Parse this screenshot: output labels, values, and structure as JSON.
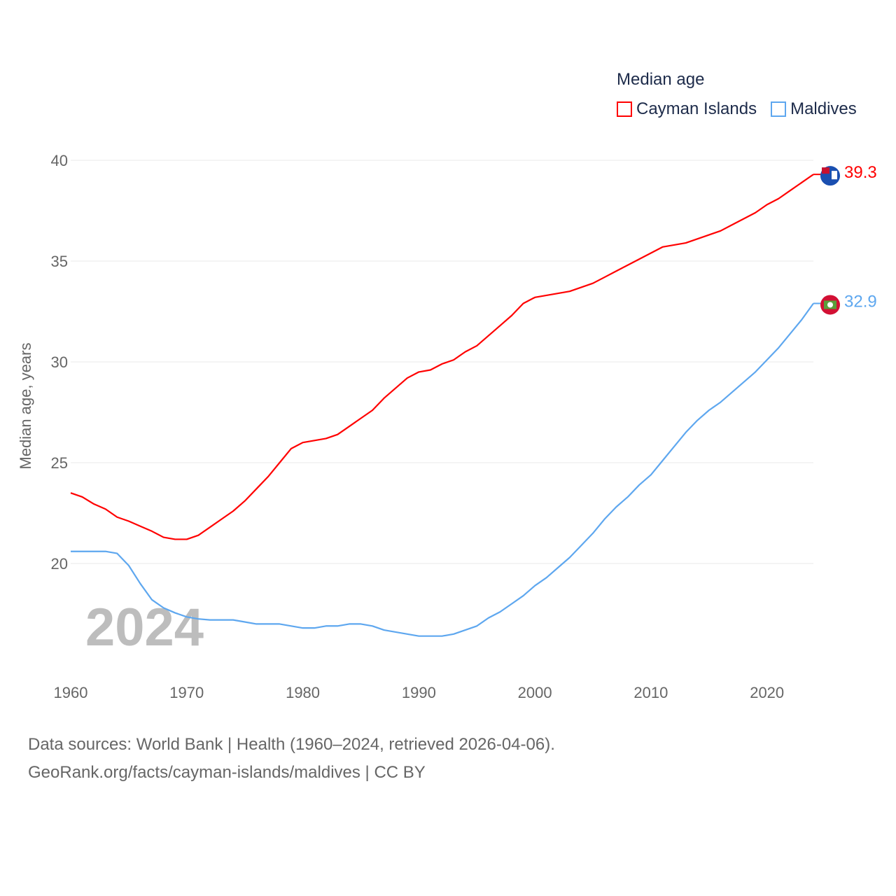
{
  "chart_data": {
    "type": "line",
    "title": "Median age",
    "ylabel": "Median age, years",
    "xlabel": "",
    "ylim": [
      15,
      40
    ],
    "xlim": [
      1960,
      2024
    ],
    "yticks": [
      20,
      25,
      30,
      35,
      40
    ],
    "xticks": [
      1960,
      1970,
      1980,
      1990,
      2000,
      2010,
      2020
    ],
    "grid": true,
    "legend_position": "top-right",
    "year_label": "2024",
    "x": [
      1960,
      1961,
      1962,
      1963,
      1964,
      1965,
      1966,
      1967,
      1968,
      1969,
      1970,
      1971,
      1972,
      1973,
      1974,
      1975,
      1976,
      1977,
      1978,
      1979,
      1980,
      1981,
      1982,
      1983,
      1984,
      1985,
      1986,
      1987,
      1988,
      1989,
      1990,
      1991,
      1992,
      1993,
      1994,
      1995,
      1996,
      1997,
      1998,
      1999,
      2000,
      2001,
      2002,
      2003,
      2004,
      2005,
      2006,
      2007,
      2008,
      2009,
      2010,
      2011,
      2012,
      2013,
      2014,
      2015,
      2016,
      2017,
      2018,
      2019,
      2020,
      2021,
      2022,
      2023,
      2024
    ],
    "series": [
      {
        "name": "Cayman Islands",
        "color": "#ff0000",
        "end_label": "39.3",
        "values": [
          23.5,
          23.3,
          22.95,
          22.7,
          22.3,
          22.1,
          21.85,
          21.6,
          21.3,
          21.2,
          21.2,
          21.4,
          21.8,
          22.2,
          22.6,
          23.1,
          23.7,
          24.3,
          25.0,
          25.7,
          26.0,
          26.1,
          26.2,
          26.4,
          26.8,
          27.2,
          27.6,
          28.2,
          28.7,
          29.2,
          29.5,
          29.6,
          29.9,
          30.1,
          30.5,
          30.8,
          31.3,
          31.8,
          32.3,
          32.9,
          33.2,
          33.3,
          33.4,
          33.5,
          33.7,
          33.9,
          34.2,
          34.5,
          34.8,
          35.1,
          35.4,
          35.7,
          35.8,
          35.9,
          36.1,
          36.3,
          36.5,
          36.8,
          37.1,
          37.4,
          37.8,
          38.1,
          38.5,
          38.9,
          39.3
        ]
      },
      {
        "name": "Maldives",
        "color": "#5ea7ef",
        "end_label": "32.9",
        "values": [
          20.6,
          20.6,
          20.6,
          20.6,
          20.5,
          19.9,
          19.0,
          18.2,
          17.8,
          17.55,
          17.35,
          17.25,
          17.2,
          17.2,
          17.2,
          17.1,
          17.0,
          17.0,
          17.0,
          16.9,
          16.8,
          16.8,
          16.9,
          16.9,
          17.0,
          17.0,
          16.9,
          16.7,
          16.6,
          16.5,
          16.4,
          16.4,
          16.4,
          16.5,
          16.7,
          16.9,
          17.3,
          17.6,
          18.0,
          18.4,
          18.9,
          19.3,
          19.8,
          20.3,
          20.9,
          21.5,
          22.2,
          22.8,
          23.3,
          23.9,
          24.4,
          25.1,
          25.8,
          26.5,
          27.1,
          27.6,
          28.0,
          28.5,
          29.0,
          29.5,
          30.1,
          30.7,
          31.4,
          32.1,
          32.9
        ]
      }
    ]
  },
  "footer": {
    "line1": "Data sources: World Bank | Health (1960–2024, retrieved 2026-04-06).",
    "line2": "GeoRank.org/facts/cayman-islands/maldives | CC BY"
  }
}
